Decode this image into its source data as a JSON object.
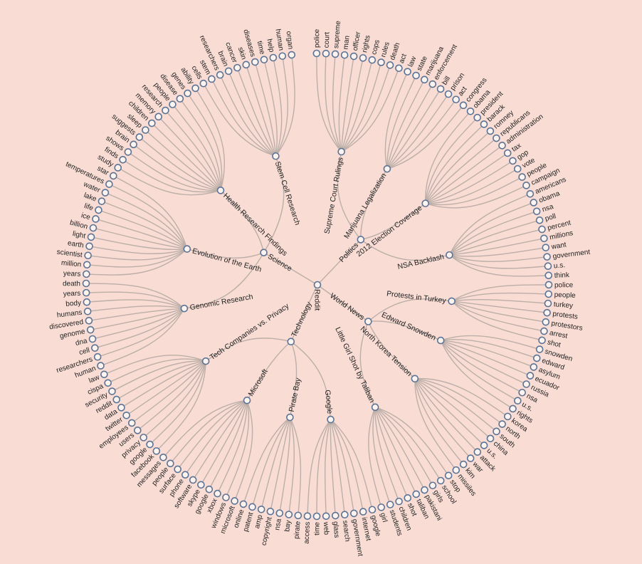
{
  "tree": {
    "name": "Reddit",
    "children": [
      {
        "name": "Politics",
        "children": [
          {
            "name": "Supreme Court Rulings",
            "children": [
              {
                "name": "police"
              },
              {
                "name": "court"
              },
              {
                "name": "supreme"
              },
              {
                "name": "man"
              },
              {
                "name": "officer"
              },
              {
                "name": "rights"
              },
              {
                "name": "cops"
              },
              {
                "name": "rules"
              },
              {
                "name": "death"
              },
              {
                "name": "act"
              }
            ]
          },
          {
            "name": "Marijuana Legalization",
            "children": [
              {
                "name": "law"
              },
              {
                "name": "state"
              },
              {
                "name": "marijuana"
              },
              {
                "name": "enforcement"
              },
              {
                "name": "bill"
              },
              {
                "name": "prison"
              },
              {
                "name": "act"
              },
              {
                "name": "congress"
              }
            ]
          },
          {
            "name": "2012 Election Coverage",
            "children": [
              {
                "name": "obama"
              },
              {
                "name": "president"
              },
              {
                "name": "barack"
              },
              {
                "name": "romney"
              },
              {
                "name": "republicans"
              },
              {
                "name": "administration"
              },
              {
                "name": "tax"
              },
              {
                "name": "gop"
              },
              {
                "name": "vote"
              },
              {
                "name": "people"
              },
              {
                "name": "campaign"
              }
            ]
          },
          {
            "name": "NSA Backlash",
            "children": [
              {
                "name": "americans"
              },
              {
                "name": "obama"
              },
              {
                "name": "nsa"
              },
              {
                "name": "poll"
              },
              {
                "name": "percent"
              },
              {
                "name": "millions"
              },
              {
                "name": "want"
              },
              {
                "name": "government"
              },
              {
                "name": "u.s."
              },
              {
                "name": "think"
              }
            ]
          }
        ]
      },
      {
        "name": "World News",
        "children": [
          {
            "name": "Protests in Turkey",
            "children": [
              {
                "name": "police"
              },
              {
                "name": "people"
              },
              {
                "name": "turkey"
              },
              {
                "name": "protests"
              },
              {
                "name": "protestors"
              },
              {
                "name": "arrest"
              },
              {
                "name": "shot"
              }
            ]
          },
          {
            "name": "Edward Snowden",
            "children": [
              {
                "name": "snowden"
              },
              {
                "name": "edward"
              },
              {
                "name": "asylum"
              },
              {
                "name": "ecuador"
              },
              {
                "name": "russia"
              },
              {
                "name": "nsa"
              },
              {
                "name": "u.s."
              },
              {
                "name": "rights"
              }
            ]
          },
          {
            "name": "North Korea Tension",
            "children": [
              {
                "name": "korea"
              },
              {
                "name": "north"
              },
              {
                "name": "south"
              },
              {
                "name": "china"
              },
              {
                "name": "u.s."
              },
              {
                "name": "attack"
              },
              {
                "name": "war"
              },
              {
                "name": "kim"
              },
              {
                "name": "missiles"
              }
            ]
          },
          {
            "name": "Little Girl Shot by Taliban",
            "children": [
              {
                "name": "stop"
              },
              {
                "name": "school"
              },
              {
                "name": "girls"
              },
              {
                "name": "pakistani"
              },
              {
                "name": "taliban"
              },
              {
                "name": "shot"
              },
              {
                "name": "children"
              },
              {
                "name": "students"
              },
              {
                "name": "girl"
              }
            ]
          }
        ]
      },
      {
        "name": "Technology",
        "children": [
          {
            "name": "Google",
            "children": [
              {
                "name": "google"
              },
              {
                "name": "internet"
              },
              {
                "name": "government"
              },
              {
                "name": "search"
              },
              {
                "name": "glass"
              },
              {
                "name": "web"
              },
              {
                "name": "time"
              },
              {
                "name": "access"
              }
            ]
          },
          {
            "name": "Pirate Bay",
            "children": [
              {
                "name": "pirate"
              },
              {
                "name": "bay"
              },
              {
                "name": "nsa"
              },
              {
                "name": "copyright"
              },
              {
                "name": "amp"
              },
              {
                "name": "patent"
              },
              {
                "name": "online"
              }
            ]
          },
          {
            "name": "Microsoft",
            "children": [
              {
                "name": "microsoft"
              },
              {
                "name": "windows"
              },
              {
                "name": "xbox"
              },
              {
                "name": "google"
              },
              {
                "name": "skype"
              },
              {
                "name": "software"
              },
              {
                "name": "phone"
              },
              {
                "name": "surface"
              },
              {
                "name": "people"
              },
              {
                "name": "messages"
              }
            ]
          },
          {
            "name": "Tech Companies vs. Privacy",
            "children": [
              {
                "name": "facebook"
              },
              {
                "name": "google"
              },
              {
                "name": "privacy"
              },
              {
                "name": "users"
              },
              {
                "name": "employees"
              },
              {
                "name": "twitter"
              },
              {
                "name": "data"
              },
              {
                "name": "reddit"
              },
              {
                "name": "security"
              },
              {
                "name": "cispa"
              },
              {
                "name": "law"
              }
            ]
          }
        ]
      },
      {
        "name": "Science",
        "children": [
          {
            "name": "Genomic Research",
            "children": [
              {
                "name": "human"
              },
              {
                "name": "researchers"
              },
              {
                "name": "cell"
              },
              {
                "name": "dna"
              },
              {
                "name": "genome"
              },
              {
                "name": "discovered"
              },
              {
                "name": "humans"
              },
              {
                "name": "body"
              },
              {
                "name": "years"
              },
              {
                "name": "death"
              }
            ]
          },
          {
            "name": "Evolution of the Earth",
            "children": [
              {
                "name": "years"
              },
              {
                "name": "million"
              },
              {
                "name": "scientist"
              },
              {
                "name": "earth"
              },
              {
                "name": "light"
              },
              {
                "name": "billion"
              },
              {
                "name": "ice"
              },
              {
                "name": "life"
              },
              {
                "name": "lake"
              },
              {
                "name": "water"
              },
              {
                "name": "temperatures"
              },
              {
                "name": "star"
              }
            ]
          },
          {
            "name": "Health Research Findings",
            "children": [
              {
                "name": "study"
              },
              {
                "name": "finds"
              },
              {
                "name": "shows"
              },
              {
                "name": "brain"
              },
              {
                "name": "suggests"
              },
              {
                "name": "sleep"
              },
              {
                "name": "children"
              },
              {
                "name": "memory"
              },
              {
                "name": "research"
              },
              {
                "name": "people"
              },
              {
                "name": "disease"
              },
              {
                "name": "genes"
              },
              {
                "name": "ability"
              }
            ]
          },
          {
            "name": "Stem Cell Research",
            "children": [
              {
                "name": "cells"
              },
              {
                "name": "stem"
              },
              {
                "name": "researchers"
              },
              {
                "name": "brain"
              },
              {
                "name": "cancer"
              },
              {
                "name": "skin"
              },
              {
                "name": "diseases"
              },
              {
                "name": "time"
              },
              {
                "name": "help"
              },
              {
                "name": "human"
              },
              {
                "name": "organ"
              }
            ]
          }
        ]
      }
    ]
  },
  "colors": {
    "background": "#f9ddd4",
    "link": "#bcaea8",
    "node_stroke": "#5b7395",
    "node_fill": "#fdf3ef",
    "text": "#222222"
  }
}
